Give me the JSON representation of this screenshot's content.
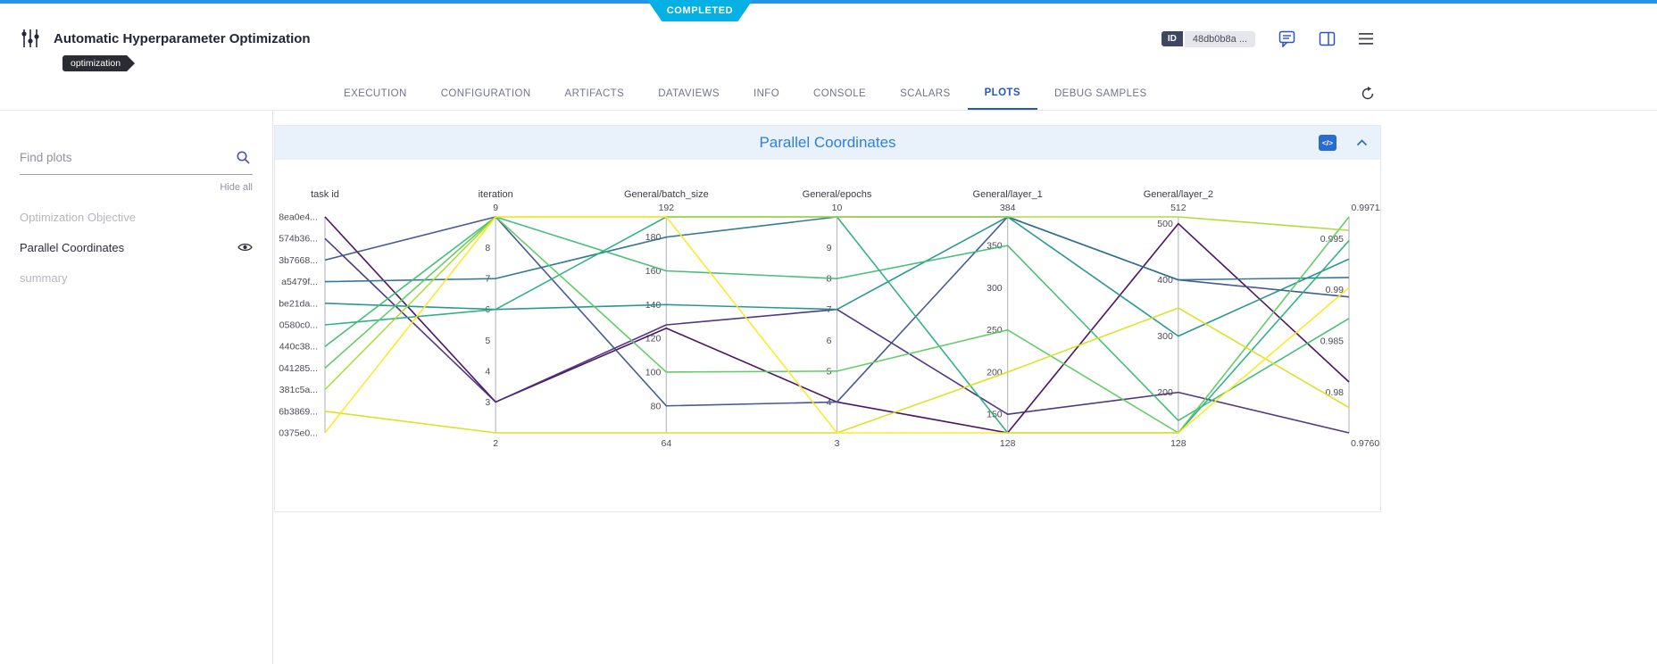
{
  "status": {
    "badge": "COMPLETED"
  },
  "header": {
    "title": "Automatic Hyperparameter Optimization",
    "tag": "optimization",
    "id_label": "ID",
    "id_value": "48db0b8a ..."
  },
  "tabs": {
    "items": [
      {
        "label": "EXECUTION"
      },
      {
        "label": "CONFIGURATION"
      },
      {
        "label": "ARTIFACTS"
      },
      {
        "label": "DATAVIEWS"
      },
      {
        "label": "INFO"
      },
      {
        "label": "CONSOLE"
      },
      {
        "label": "SCALARS"
      },
      {
        "label": "PLOTS"
      },
      {
        "label": "DEBUG SAMPLES"
      }
    ],
    "active": "PLOTS"
  },
  "sidebar": {
    "search_placeholder": "Find plots",
    "hide_all_label": "Hide all",
    "items": [
      {
        "label": "Optimization Objective"
      },
      {
        "label": "Parallel Coordinates"
      },
      {
        "label": "summary"
      }
    ]
  },
  "panel": {
    "title": "Parallel Coordinates",
    "code_icon": "</>"
  },
  "colors": {
    "top_strip": "#2493ee",
    "badge": "#04b0e4",
    "accent_blue": "#2456c4",
    "panel_header_bg": "#e9f1fb",
    "panel_title": "#2e80d9"
  },
  "chart_data": {
    "type": "parallel-coordinates",
    "axes": [
      {
        "title": "task id",
        "categories": [
          "8ea0e4...",
          "574b36...",
          "3b7668...",
          "a5479f...",
          "be21da...",
          "0580c0...",
          "440c38...",
          "041285...",
          "381c5a...",
          "6b3869...",
          "0375e0..."
        ]
      },
      {
        "title": "iteration",
        "min": 2,
        "max": 9,
        "top_label": "9",
        "bottom_label": "2",
        "ticks": [
          8,
          7,
          6,
          5,
          4,
          3
        ]
      },
      {
        "title": "General/batch_size",
        "min": 64,
        "max": 192,
        "top_label": "192",
        "bottom_label": "64",
        "ticks": [
          180,
          160,
          140,
          120,
          100,
          80
        ]
      },
      {
        "title": "General/epochs",
        "min": 3,
        "max": 10,
        "top_label": "10",
        "bottom_label": "3",
        "ticks": [
          9,
          8,
          7,
          6,
          5,
          4
        ]
      },
      {
        "title": "General/layer_1",
        "min": 128,
        "max": 384,
        "top_label": "384",
        "bottom_label": "128",
        "ticks": [
          350,
          300,
          250,
          200,
          150
        ]
      },
      {
        "title": "General/layer_2",
        "min": 128,
        "max": 512,
        "top_label": "512",
        "bottom_label": "128",
        "ticks": [
          500,
          400,
          300,
          200
        ]
      },
      {
        "title": "",
        "min": 0.976033,
        "max": 0.997117,
        "top_label": "0.997117",
        "bottom_label": "0.976033",
        "ticks": [
          0.995,
          0.99,
          0.985,
          0.98
        ],
        "range_dx": 24
      }
    ],
    "lines": [
      {
        "task": "8ea0e4...",
        "color": "#46085c",
        "values": [
          3,
          126,
          4,
          128,
          500,
          0.981
        ]
      },
      {
        "task": "574b36...",
        "color": "#472d7b",
        "values": [
          3,
          128,
          7,
          150,
          200,
          0.976033
        ]
      },
      {
        "task": "3b7668...",
        "color": "#3b528b",
        "values": [
          9,
          80,
          4,
          384,
          400,
          0.9893
        ]
      },
      {
        "task": "a5479f...",
        "color": "#2c728e",
        "values": [
          7,
          180,
          10,
          384,
          400,
          0.9912
        ]
      },
      {
        "task": "be21da...",
        "color": "#21918c",
        "values": [
          6,
          140,
          7,
          384,
          300,
          0.993
        ]
      },
      {
        "task": "0580c0...",
        "color": "#27ad81",
        "values": [
          6,
          192,
          10,
          128,
          128,
          0.9948
        ]
      },
      {
        "task": "440c38...",
        "color": "#3fbc73",
        "values": [
          9,
          160,
          8,
          350,
          150,
          0.9872
        ]
      },
      {
        "task": "041285...",
        "color": "#5ec962",
        "values": [
          9,
          100,
          5,
          250,
          128,
          0.997117
        ]
      },
      {
        "task": "381c5a...",
        "color": "#aadc32",
        "values": [
          9,
          192,
          10,
          384,
          512,
          0.9958
        ]
      },
      {
        "task": "6b3869...",
        "color": "#d8e219",
        "values": [
          2,
          64,
          3,
          200,
          350,
          0.9785
        ]
      },
      {
        "task": "0375e0...",
        "color": "#fde725",
        "values": [
          9,
          192,
          3,
          128,
          128,
          0.9902
        ]
      }
    ]
  }
}
